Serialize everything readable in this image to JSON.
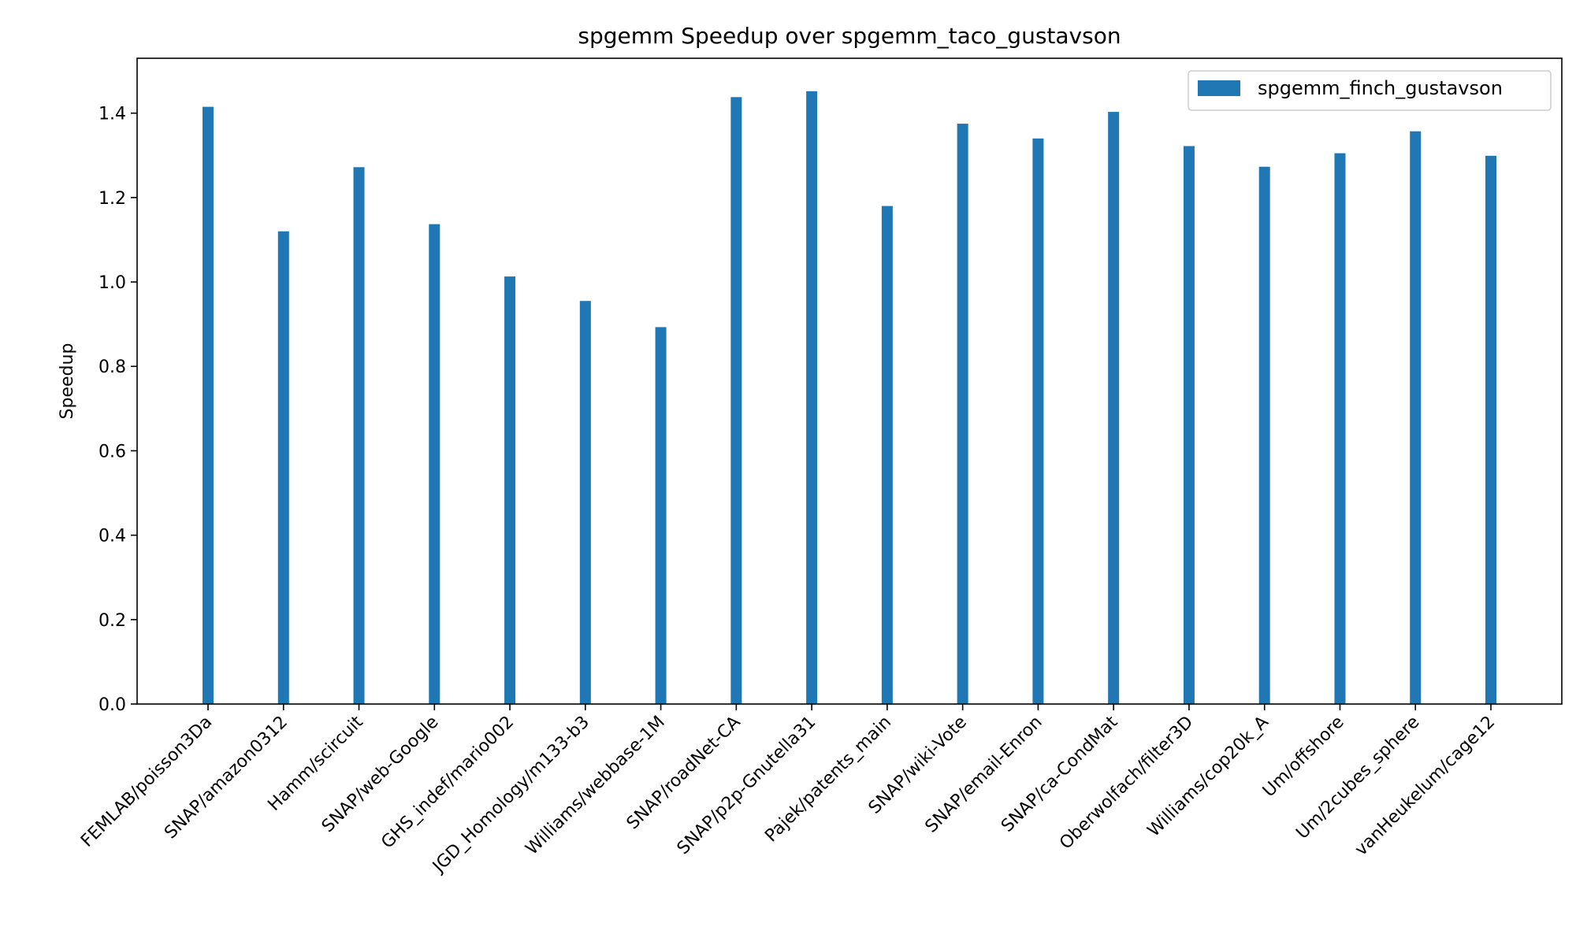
{
  "chart_data": {
    "type": "bar",
    "title": "spgemm Speedup over spgemm_taco_gustavson",
    "xlabel": "",
    "ylabel": "Speedup",
    "ylim": [
      0,
      1.53
    ],
    "yticks": [
      0.0,
      0.2,
      0.4,
      0.6,
      0.8,
      1.0,
      1.2,
      1.4
    ],
    "grid": false,
    "legend_position": "top-right",
    "categories": [
      "FEMLAB/poisson3Da",
      "SNAP/amazon0312",
      "Hamm/scircuit",
      "SNAP/web-Google",
      "GHS_indef/mario002",
      "JGD_Homology/m133-b3",
      "Williams/webbase-1M",
      "SNAP/roadNet-CA",
      "SNAP/p2p-Gnutella31",
      "Pajek/patents_main",
      "SNAP/wiki-Vote",
      "SNAP/email-Enron",
      "SNAP/ca-CondMat",
      "Oberwolfach/filter3D",
      "Williams/cop20k_A",
      "Um/offshore",
      "Um/2cubes_sphere",
      "vanHeukelum/cage12"
    ],
    "series": [
      {
        "name": "spgemm_finch_gustavson",
        "color": "#1f77b4",
        "values": [
          1.415,
          1.12,
          1.272,
          1.137,
          1.013,
          0.955,
          0.893,
          1.438,
          1.452,
          1.18,
          1.375,
          1.34,
          1.403,
          1.322,
          1.273,
          1.305,
          1.357,
          1.299
        ]
      }
    ]
  }
}
